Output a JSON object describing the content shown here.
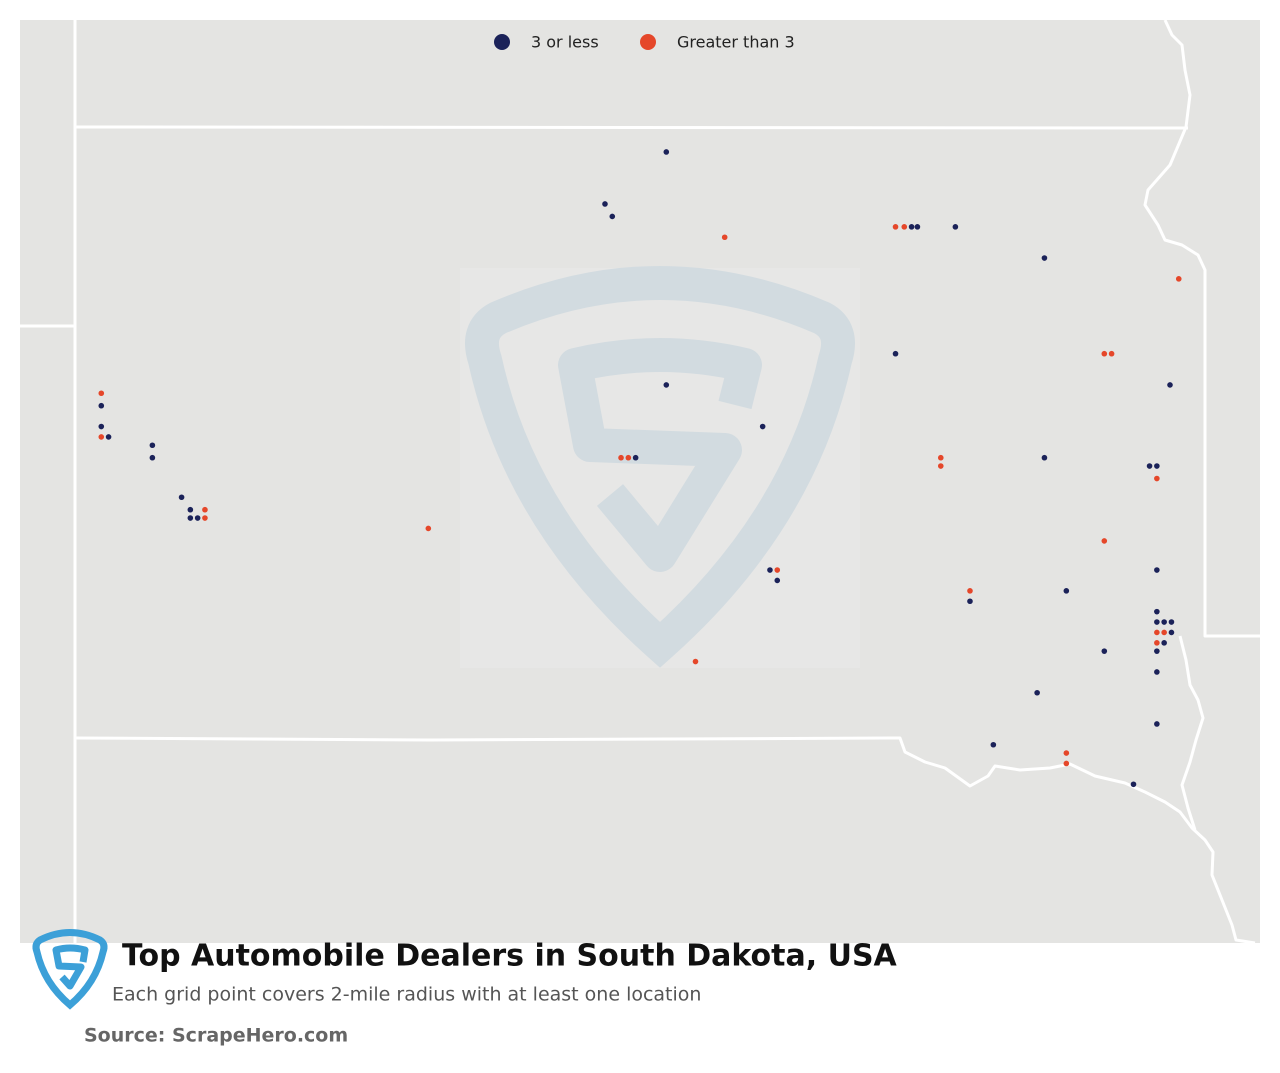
{
  "title": "Top Automobile Dealers in South Dakota, USA",
  "subtitle": "Each grid point covers 2-mile radius with at least one location",
  "source": "Source: ScrapeHero.com",
  "series": [
    {
      "name": "3 or less",
      "color": "#1b2259",
      "points": [
        [
          -100.0,
          45.82
        ],
        [
          -100.42,
          45.57
        ],
        [
          -100.37,
          45.51
        ],
        [
          -98.32,
          45.46
        ],
        [
          -98.28,
          45.46
        ],
        [
          -98.02,
          45.46
        ],
        [
          -97.41,
          45.31
        ],
        [
          -98.43,
          44.85
        ],
        [
          -96.55,
          44.7
        ],
        [
          -100.0,
          44.7
        ],
        [
          -103.87,
          44.6
        ],
        [
          -103.87,
          44.5
        ],
        [
          -103.82,
          44.45
        ],
        [
          -103.52,
          44.41
        ],
        [
          -103.52,
          44.35
        ],
        [
          -99.34,
          44.5
        ],
        [
          -100.21,
          44.35
        ],
        [
          -97.41,
          44.35
        ],
        [
          -96.69,
          44.31
        ],
        [
          -96.64,
          44.31
        ],
        [
          -103.32,
          44.16
        ],
        [
          -103.26,
          44.1
        ],
        [
          -103.26,
          44.06
        ],
        [
          -103.21,
          44.06
        ],
        [
          -99.29,
          43.81
        ],
        [
          -99.24,
          43.76
        ],
        [
          -96.64,
          43.81
        ],
        [
          -97.92,
          43.66
        ],
        [
          -97.26,
          43.71
        ],
        [
          -96.64,
          43.61
        ],
        [
          -96.64,
          43.56
        ],
        [
          -96.59,
          43.56
        ],
        [
          -96.54,
          43.56
        ],
        [
          -96.54,
          43.51
        ],
        [
          -96.59,
          43.46
        ],
        [
          -97.0,
          43.42
        ],
        [
          -96.64,
          43.42
        ],
        [
          -96.64,
          43.32
        ],
        [
          -97.46,
          43.22
        ],
        [
          -96.64,
          43.07
        ],
        [
          -97.76,
          42.97
        ],
        [
          -96.8,
          42.78
        ]
      ]
    },
    {
      "name": "Greater than 3",
      "color": "#e5472a",
      "points": [
        [
          -99.6,
          45.41
        ],
        [
          -98.43,
          45.46
        ],
        [
          -98.37,
          45.46
        ],
        [
          -96.49,
          45.21
        ],
        [
          -97.0,
          44.85
        ],
        [
          -96.95,
          44.85
        ],
        [
          -103.87,
          44.66
        ],
        [
          -103.87,
          44.45
        ],
        [
          -100.31,
          44.35
        ],
        [
          -100.26,
          44.35
        ],
        [
          -98.12,
          44.35
        ],
        [
          -98.12,
          44.31
        ],
        [
          -96.64,
          44.25
        ],
        [
          -103.16,
          44.1
        ],
        [
          -103.16,
          44.06
        ],
        [
          -101.63,
          44.01
        ],
        [
          -97.0,
          43.95
        ],
        [
          -99.24,
          43.81
        ],
        [
          -97.92,
          43.71
        ],
        [
          -96.64,
          43.51
        ],
        [
          -96.59,
          43.51
        ],
        [
          -96.64,
          43.46
        ],
        [
          -99.8,
          43.37
        ],
        [
          -97.26,
          42.93
        ],
        [
          -97.26,
          42.88
        ]
      ]
    }
  ]
}
